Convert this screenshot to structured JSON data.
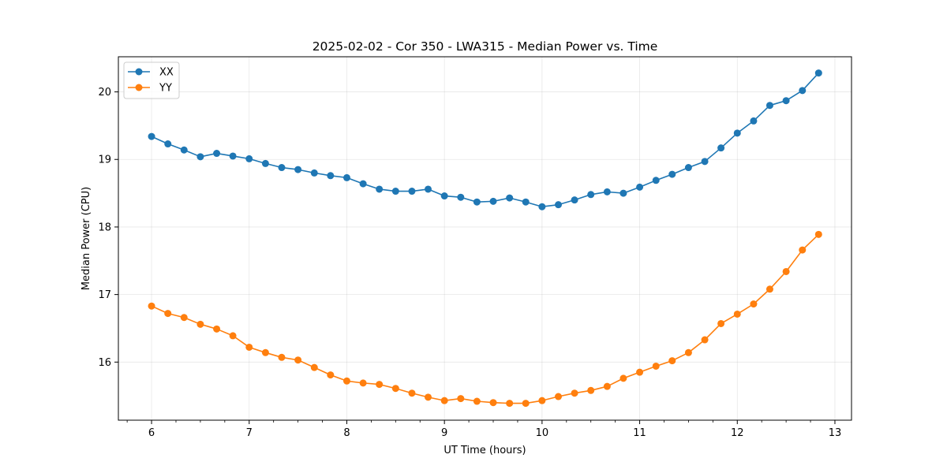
{
  "chart_data": {
    "type": "line",
    "title": "2025-02-02 - Cor 350 - LWA315 - Median Power vs. Time",
    "xlabel": "UT Time (hours)",
    "ylabel": "Median Power (CPU)",
    "xlim": [
      5.66,
      13.17
    ],
    "ylim": [
      15.14,
      20.52
    ],
    "x_major_ticks": [
      6,
      7,
      8,
      9,
      10,
      11,
      12,
      13
    ],
    "x_tick_labels": [
      "6",
      "7",
      "8",
      "9",
      "10",
      "11",
      "12",
      "13"
    ],
    "y_major_ticks": [
      16,
      17,
      18,
      19,
      20
    ],
    "y_tick_labels": [
      "16",
      "17",
      "18",
      "19",
      "20"
    ],
    "grid": true,
    "legend_position": "upper-left",
    "x": [
      6.0,
      6.167,
      6.333,
      6.5,
      6.667,
      6.833,
      7.0,
      7.167,
      7.333,
      7.5,
      7.667,
      7.833,
      8.0,
      8.167,
      8.333,
      8.5,
      8.667,
      8.833,
      9.0,
      9.167,
      9.333,
      9.5,
      9.667,
      9.833,
      10.0,
      10.167,
      10.333,
      10.5,
      10.667,
      10.833,
      11.0,
      11.167,
      11.333,
      11.5,
      11.667,
      11.833,
      12.0,
      12.167,
      12.333,
      12.5,
      12.667,
      12.833
    ],
    "series": [
      {
        "name": "XX",
        "color": "#1f77b4",
        "values": [
          19.34,
          19.23,
          19.14,
          19.04,
          19.09,
          19.05,
          19.01,
          18.94,
          18.88,
          18.85,
          18.8,
          18.76,
          18.73,
          18.64,
          18.56,
          18.53,
          18.53,
          18.56,
          18.46,
          18.44,
          18.37,
          18.38,
          18.43,
          18.37,
          18.3,
          18.33,
          18.4,
          18.48,
          18.52,
          18.5,
          18.59,
          18.69,
          18.78,
          18.88,
          18.97,
          19.17,
          19.39,
          19.57,
          19.8,
          19.87,
          20.02,
          20.28
        ]
      },
      {
        "name": "YY",
        "color": "#ff7f0e",
        "values": [
          16.83,
          16.72,
          16.66,
          16.56,
          16.49,
          16.39,
          16.22,
          16.14,
          16.07,
          16.03,
          15.92,
          15.81,
          15.72,
          15.69,
          15.67,
          15.61,
          15.54,
          15.48,
          15.43,
          15.46,
          15.42,
          15.4,
          15.39,
          15.39,
          15.43,
          15.49,
          15.54,
          15.58,
          15.64,
          15.76,
          15.85,
          15.94,
          16.02,
          16.14,
          16.33,
          16.57,
          16.71,
          16.86,
          17.08,
          17.34,
          17.66,
          17.89
        ]
      }
    ]
  }
}
